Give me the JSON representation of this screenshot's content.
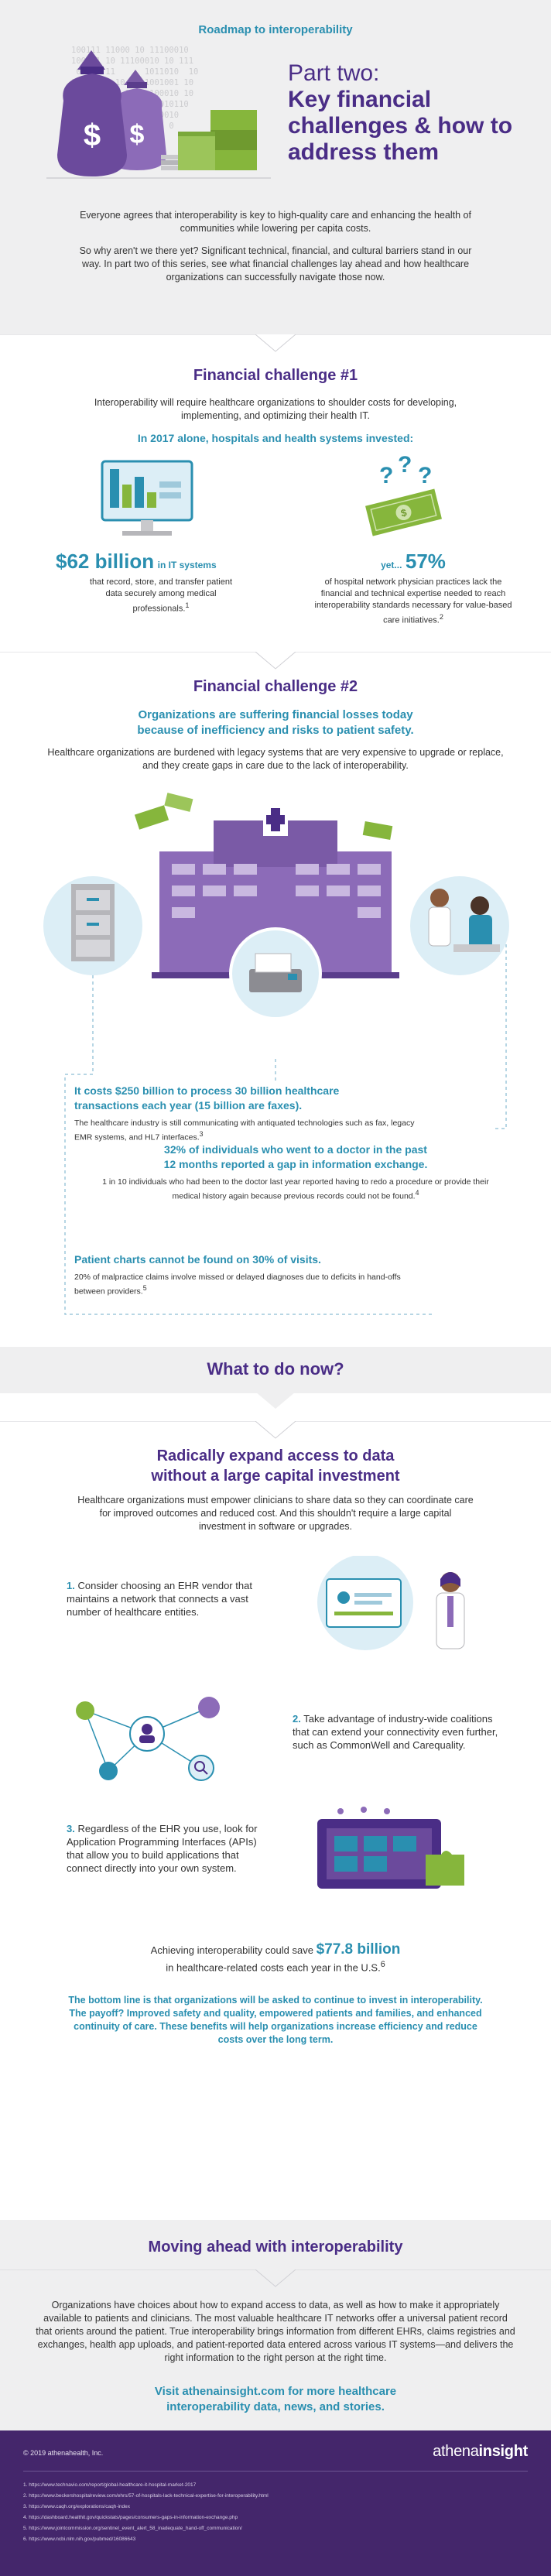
{
  "hero": {
    "roadmap": "Roadmap to interoperability",
    "part": "Part two:",
    "title_line1": "Key financial",
    "title_line2": "challenges & how to",
    "title_line3": "address them",
    "binary": "100111 11000 10 11100010\n100111 10 11100010 10 111\n 00011 11      1011010  10\n1100 111 10  ::1001001 10\n00100 1 10 111  100010 10\n 10  111 1100100  010110\n 10 111 1100 10 110010\n  1 0 1100 100 1101 0",
    "intro_p1": "Everyone agrees that interoperability is key to high-quality care and enhancing the health of communities while lowering per capita costs.",
    "intro_p2": "So why aren't we there yet? Significant technical, financial, and cultural barriers stand in our way. In part two of this series, see what financial challenges lay ahead and how healthcare organizations can successfully navigate those now."
  },
  "fc1": {
    "title": "Financial challenge #1",
    "intro": "Interoperability will require healthcare organizations to shoulder costs for developing, implementing, and optimizing their health IT.",
    "sub": "In 2017 alone, hospitals and health systems invested:",
    "stat1_big": "$62 billion",
    "stat1_small": "in IT systems",
    "stat1_text": "that record, store, and transfer patient data securely among medical professionals.",
    "stat1_sup": "1",
    "stat2_yet": "yet...",
    "stat2_big": "57%",
    "stat2_text": "of hospital network physician practices lack the financial and technical expertise needed to reach interoperability standards necessary for value-based care initiatives.",
    "stat2_sup": "2"
  },
  "fc2": {
    "title": "Financial challenge #2",
    "sub_line1": "Organizations are suffering financial losses today",
    "sub_line2": "because of inefficiency and risks to patient safety.",
    "intro": "Healthcare organizations are burdened with legacy systems that are very expensive to upgrade or replace, and they create gaps in care due to the lack of interoperability.",
    "s1_h1": "It costs $250 billion to process 30 billion healthcare",
    "s1_h2": "transactions each year (15 billion are faxes).",
    "s1_t": "The healthcare industry is still communicating with antiquated technologies such as fax, legacy EMR systems, and HL7 interfaces.",
    "s1_sup": "3",
    "s2_h1": "32% of individuals who went to a doctor in the past",
    "s2_h2": "12 months reported a gap in information exchange.",
    "s2_t": "1 in 10 individuals who had been to the doctor last year reported having to redo a procedure or provide their medical history again because previous records could not be found.",
    "s2_sup": "4",
    "s3_h": "Patient charts cannot be found on 30% of visits.",
    "s3_t": "20% of malpractice claims involve missed or delayed diagnoses due to deficits in hand-offs between providers.",
    "s3_sup": "5"
  },
  "todo": {
    "band_title": "What to do now?",
    "title_line1": "Radically expand access to data",
    "title_line2": "without a large capital investment",
    "intro": "Healthcare organizations must empower clinicians to share data so they can coordinate care for improved outcomes and reduced cost. And this shouldn't require a large capital investment in software or upgrades.",
    "step1_n": "1.",
    "step1": "Consider choosing an EHR vendor that maintains a network that connects a vast number of healthcare entities.",
    "step2_n": "2.",
    "step2": "Take advantage of industry-wide coalitions that can extend your connectivity even further, such as CommonWell and Carequality.",
    "step3_n": "3.",
    "step3": "Regardless of the EHR you use, look for Application Programming Interfaces (APIs) that allow you to build applications that connect directly into your own system.",
    "save_pre": "Achieving interoperability could save",
    "save_big": "$77.8 billion",
    "save_post": "in healthcare-related costs each year in the U.S.",
    "save_sup": "6",
    "bottom_line": "The bottom line is that organizations will be asked to continue to invest in interoperability. The payoff? Improved safety and quality, empowered patients and families, and enhanced continuity of care. These benefits will help organizations increase efficiency and reduce costs over the long term."
  },
  "ahead": {
    "title": "Moving ahead with interoperability",
    "body": "Organizations have choices about how to expand access to data, as well as how to make it appropriately available to patients and clinicians. The most valuable healthcare IT networks offer a universal patient record that orients around the patient. True interoperability brings information from different EHRs, claims registries and exchanges, health app uploads, and patient-reported data entered across various IT systems—and delivers the right information to the right person at the right time.",
    "visit_line1": "Visit athenainsight.com for more healthcare",
    "visit_line2": "interoperability data, news, and stories."
  },
  "footer": {
    "copyright": "© 2019 athenahealth, Inc.",
    "logo_a": "athena",
    "logo_b": "insight",
    "refs": [
      "1. https://www.technavio.com/report/global-healthcare-it-hospital-market-2017",
      "2. https://www.beckershospitalreview.com/ehrs/57-of-hospitals-lack-technical-expertise-for-interoperability.html",
      "3. https://www.caqh.org/explorations/caqh-index",
      "4. https://dashboard.healthit.gov/quickstats/pages/consumers-gaps-in-information-exchange.php",
      "5. https://www.jointcommission.org/sentinel_event_alert_58_inadequate_hand-off_communication/",
      "6. https://www.ncbi.nlm.nih.gov/pubmed/16086643"
    ]
  },
  "colors": {
    "purple": "#4a2d86",
    "teal": "#2a8fb0",
    "green": "#86b63c",
    "gray_bg": "#efeff0",
    "footer": "#44266b"
  }
}
